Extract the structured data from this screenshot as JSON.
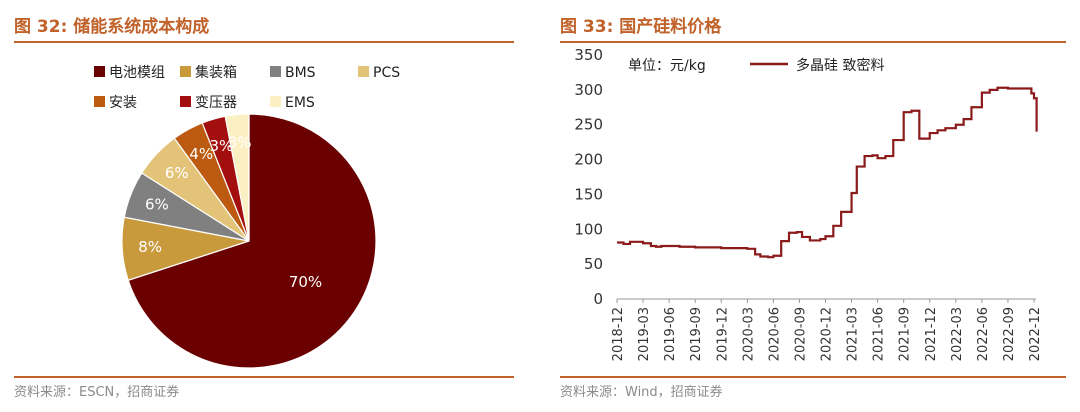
{
  "left": {
    "title": "图 32: 储能系统成本构成",
    "source": "资料来源：ESCN，招商证券",
    "chart_data": {
      "type": "pie",
      "categories": [
        "电池模组",
        "集装箱",
        "BMS",
        "PCS",
        "安装",
        "变压器",
        "EMS"
      ],
      "values": [
        70,
        8,
        6,
        6,
        4,
        3,
        3
      ],
      "labels": [
        "70%",
        "8%",
        "6%",
        "6%",
        "4%",
        "3%",
        "3%"
      ],
      "colors": [
        "#6b0000",
        "#c99a3c",
        "#808080",
        "#e2c377",
        "#bb5a10",
        "#a30e0e",
        "#fbefc4"
      ],
      "legend_position": "top"
    }
  },
  "right": {
    "title": "图 33: 国产硅料价格",
    "source": "资料来源：Wind，招商证券",
    "chart_data": {
      "type": "line",
      "unit_label": "单位：元/kg",
      "series_name": "多晶硅 致密料",
      "color": "#8b1a1a",
      "ylim": [
        0,
        350
      ],
      "yticks": [
        0,
        50,
        100,
        150,
        200,
        250,
        300,
        350
      ],
      "xticks": [
        "2018-12",
        "2019-03",
        "2019-06",
        "2019-09",
        "2019-12",
        "2020-03",
        "2020-06",
        "2020-09",
        "2020-12",
        "2021-03",
        "2021-06",
        "2021-09",
        "2021-12",
        "2022-03",
        "2022-06",
        "2022-09",
        "2022-12"
      ],
      "x": [
        0,
        0.25,
        0.5,
        1,
        1.3,
        1.5,
        1.7,
        2,
        2.4,
        3,
        3.4,
        4,
        4.6,
        5,
        5.3,
        5.5,
        5.8,
        6,
        6.3,
        6.6,
        6.9,
        7.1,
        7.4,
        7.8,
        8,
        8.3,
        8.6,
        9,
        9.2,
        9.5,
        9.8,
        10,
        10.3,
        10.6,
        11,
        11.3,
        11.6,
        12,
        12.3,
        12.6,
        13,
        13.3,
        13.6,
        14,
        14.3,
        14.6,
        14.8,
        15,
        15.3,
        15.6,
        15.9,
        16,
        16.1
      ],
      "y": [
        81,
        79,
        82,
        80,
        76,
        75,
        76,
        76,
        75,
        74,
        74,
        73,
        73,
        72,
        64,
        61,
        60,
        62,
        83,
        95,
        96,
        89,
        84,
        86,
        90,
        105,
        125,
        152,
        190,
        205,
        206,
        202,
        205,
        228,
        268,
        270,
        230,
        238,
        242,
        245,
        250,
        258,
        275,
        296,
        300,
        303,
        303,
        302,
        302,
        302,
        295,
        288,
        240
      ]
    }
  }
}
